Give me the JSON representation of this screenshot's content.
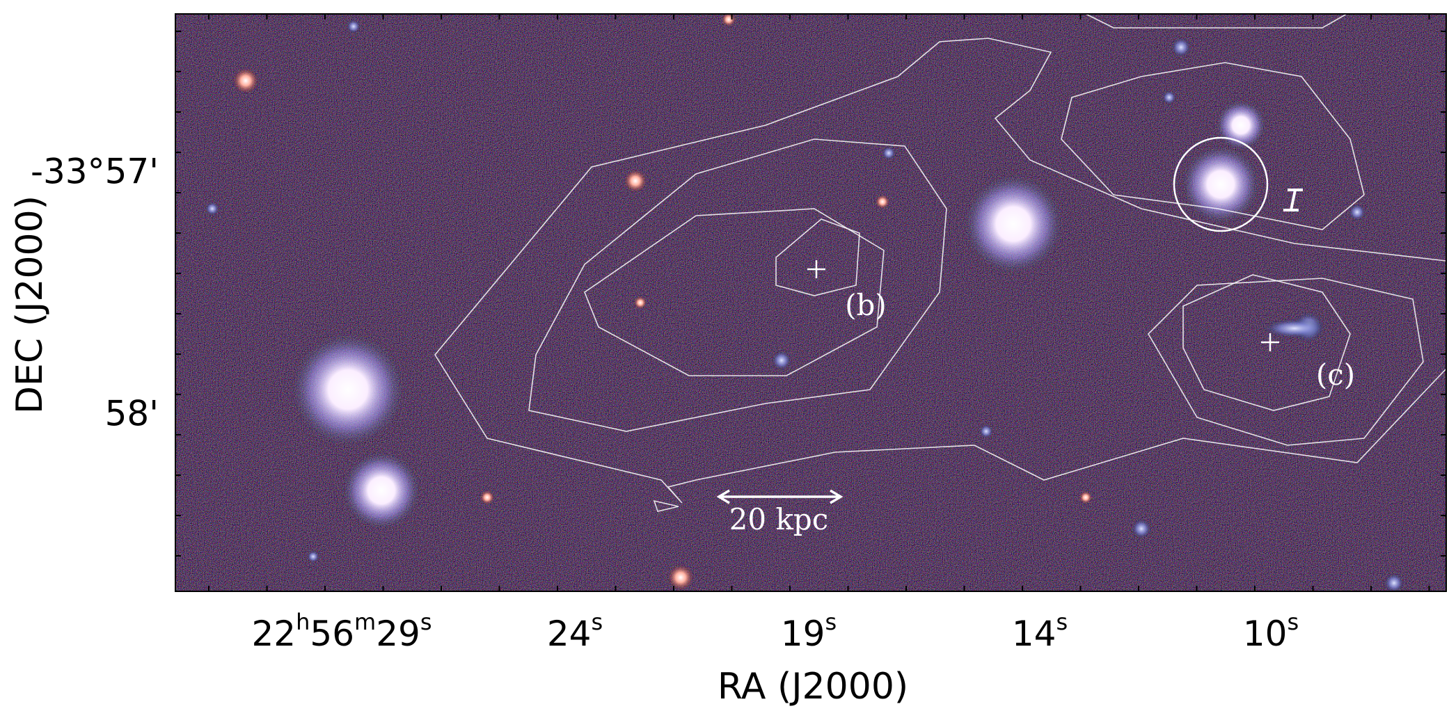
{
  "axes": {
    "x_title": "RA (J2000)",
    "y_title": "DEC (J2000)",
    "x_ticks": [
      [
        "22",
        "h",
        "56",
        "m",
        "29",
        "s"
      ],
      [
        "24",
        "s"
      ],
      [
        "19",
        "s"
      ],
      [
        "14",
        "s"
      ],
      [
        "10",
        "s"
      ]
    ],
    "y_ticks": [
      "-33°57'",
      "58'"
    ]
  },
  "annotations": {
    "b": "(b)",
    "c": "(c)",
    "marker": "I",
    "scale": "20 kpc"
  }
}
